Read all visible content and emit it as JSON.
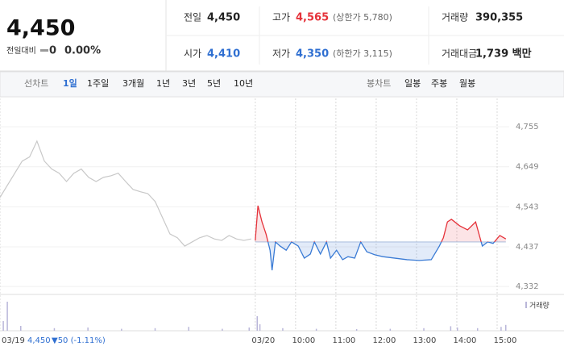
{
  "quote": {
    "price": "4,450",
    "change_label": "전일대비",
    "change": "0",
    "change_pct": "0.00%"
  },
  "stats": [
    {
      "label": "전일",
      "value": "4,450"
    },
    {
      "label": "고가",
      "value": "4,565",
      "note": "(상한가 5,780)",
      "color": "#e5323a"
    },
    {
      "label": "거래량",
      "value": "390,355"
    },
    {
      "label": "시가",
      "value": "4,410",
      "color": "#2f6fd1"
    },
    {
      "label": "저가",
      "value": "4,350",
      "note": "(하한가 3,115)",
      "color": "#2f6fd1"
    },
    {
      "label": "거래대금",
      "value": "1,739 백만"
    }
  ],
  "tabs": {
    "line_label": "선차트",
    "line": [
      "1일",
      "1주일",
      "3개월",
      "1년",
      "3년",
      "5년",
      "10년"
    ],
    "candle_label": "봉차트",
    "candle": [
      "일봉",
      "주봉",
      "월봉"
    ]
  },
  "chart_data": {
    "type": "line",
    "xlim": [
      -380,
      378
    ],
    "ylim": [
      4311,
      4830
    ],
    "yticks": [
      {
        "value": 4755,
        "label": "4,755"
      },
      {
        "value": 4649,
        "label": "4,649"
      },
      {
        "value": 4543,
        "label": "4,543"
      },
      {
        "value": 4437,
        "label": "4,437"
      },
      {
        "value": 4332,
        "label": "4,332"
      }
    ],
    "xticks": [
      {
        "value": -380,
        "label": "03/19"
      },
      {
        "value": 0,
        "label": "03/20"
      },
      {
        "value": 60,
        "label": "10:00"
      },
      {
        "value": 120,
        "label": "11:00"
      },
      {
        "value": 180,
        "label": "12:00"
      },
      {
        "value": 240,
        "label": "13:00"
      },
      {
        "value": 300,
        "label": "14:00"
      },
      {
        "value": 360,
        "label": "15:00"
      }
    ],
    "prev_close": {
      "value": 4450,
      "label": "4,450"
    },
    "prev_change": "▼50 (-1.11%)",
    "up_color": "#e5323a",
    "down_color": "#3a7bd5",
    "series": [
      {
        "color": "#c8c8c8",
        "x": [
          -380,
          -369,
          -358,
          -347,
          -336,
          -325,
          -314,
          -303,
          -292,
          -281,
          -270,
          -259,
          -248,
          -237,
          -226,
          -215,
          -204,
          -193,
          -182,
          -171,
          -160,
          -149,
          -138,
          -127,
          -116,
          -105,
          -94,
          -83,
          -72,
          -61,
          -50,
          -39,
          -28,
          -17,
          -6
        ],
        "values": [
          4568,
          4600,
          4632,
          4664,
          4675,
          4717,
          4664,
          4643,
          4632,
          4610,
          4632,
          4643,
          4621,
          4610,
          4621,
          4625,
          4632,
          4610,
          4589,
          4583,
          4578,
          4557,
          4514,
          4471,
          4461,
          4439,
          4450,
          4461,
          4467,
          4458,
          4454,
          4467,
          4458,
          4454,
          4458
        ]
      },
      {
        "x": [
          0,
          4,
          10,
          16,
          22,
          25,
          30,
          37,
          46,
          54,
          64,
          73,
          82,
          88,
          97,
          106,
          112,
          121,
          130,
          138,
          148,
          157,
          166,
          178,
          190,
          208,
          226,
          244,
          262,
          274,
          280,
          286,
          292,
          304,
          316,
          328,
          338,
          346,
          354,
          364,
          373
        ],
        "values": [
          4454,
          4546,
          4503,
          4471,
          4428,
          4375,
          4450,
          4439,
          4428,
          4450,
          4439,
          4407,
          4418,
          4450,
          4418,
          4450,
          4407,
          4428,
          4403,
          4411,
          4407,
          4450,
          4424,
          4416,
          4411,
          4407,
          4403,
          4401,
          4403,
          4439,
          4461,
          4503,
          4510,
          4493,
          4482,
          4503,
          4439,
          4450,
          4446,
          4467,
          4458
        ]
      }
    ],
    "volume": {
      "name": "거래량",
      "color": "#b9b6d9",
      "x": [
        -376,
        -370,
        -350,
        -300,
        -250,
        -200,
        -150,
        -100,
        -50,
        -10,
        2,
        6,
        40,
        90,
        150,
        200,
        250,
        290,
        300,
        330,
        365,
        372
      ],
      "values": [
        30,
        90,
        15,
        8,
        10,
        6,
        8,
        12,
        6,
        10,
        45,
        20,
        8,
        6,
        5,
        6,
        8,
        14,
        10,
        8,
        12,
        18
      ]
    }
  }
}
